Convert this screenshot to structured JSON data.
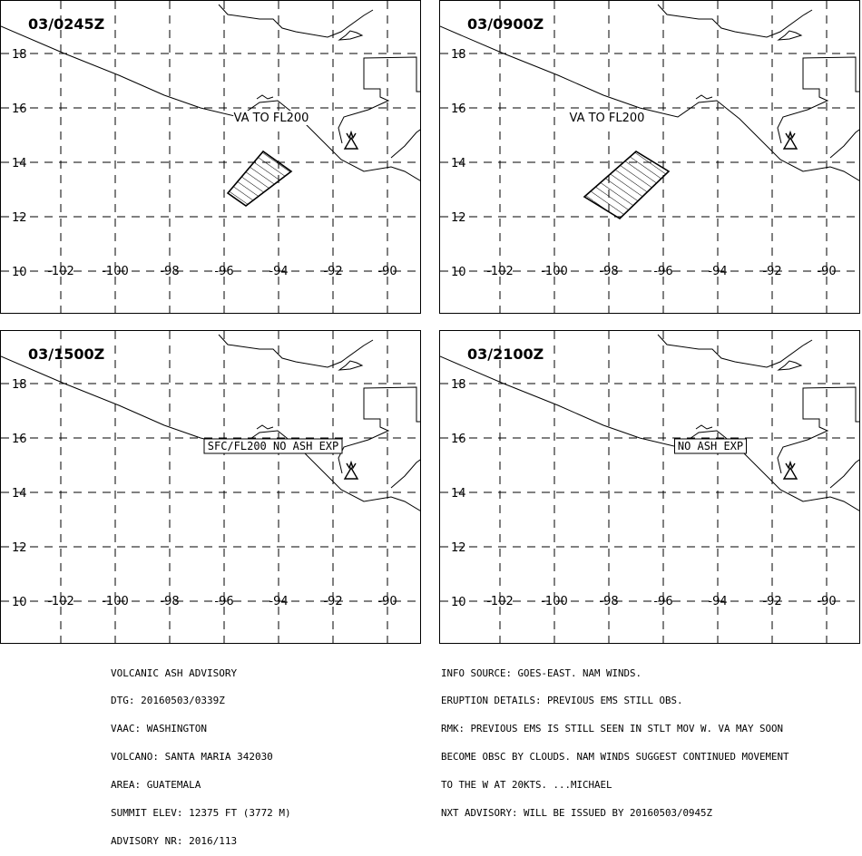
{
  "panels": [
    {
      "time": "03/0245Z",
      "label": "VA TO FL200",
      "label_boxed": false,
      "ash": true
    },
    {
      "time": "03/0900Z",
      "label": "VA TO FL200",
      "label_boxed": false,
      "ash": true
    },
    {
      "time": "03/1500Z",
      "label": "SFC/FL200 NO ASH EXP",
      "label_boxed": true,
      "ash": false
    },
    {
      "time": "03/2100Z",
      "label": "NO ASH EXP",
      "label_boxed": true,
      "ash": false
    }
  ],
  "axes": {
    "lat_labels": [
      "18",
      "16",
      "14",
      "12",
      "10"
    ],
    "lon_labels": [
      "-102",
      "-100",
      "-98",
      "-96",
      "-94",
      "-92",
      "-90"
    ]
  },
  "icons": {
    "volcano": "volcano-icon"
  },
  "footer": {
    "left": [
      "VOLCANIC ASH ADVISORY",
      "DTG: 20160503/0339Z",
      "VAAC: WASHINGTON",
      "VOLCANO: SANTA MARIA 342030",
      "AREA: GUATEMALA",
      "SUMMIT ELEV: 12375 FT (3772 M)",
      "ADVISORY NR: 2016/113"
    ],
    "right": [
      "INFO SOURCE: GOES-EAST. NAM WINDS.",
      "ERUPTION DETAILS: PREVIOUS EMS STILL OBS.",
      "RMK: PREVIOUS EMS IS STILL SEEN IN STLT MOV W. VA MAY SOON",
      "BECOME OBSC BY CLOUDS. NAM WINDS SUGGEST CONTINUED MOVEMENT",
      "TO THE W AT 20KTS. ...MICHAEL",
      "NXT ADVISORY: WILL BE ISSUED BY 20160503/0945Z"
    ]
  }
}
